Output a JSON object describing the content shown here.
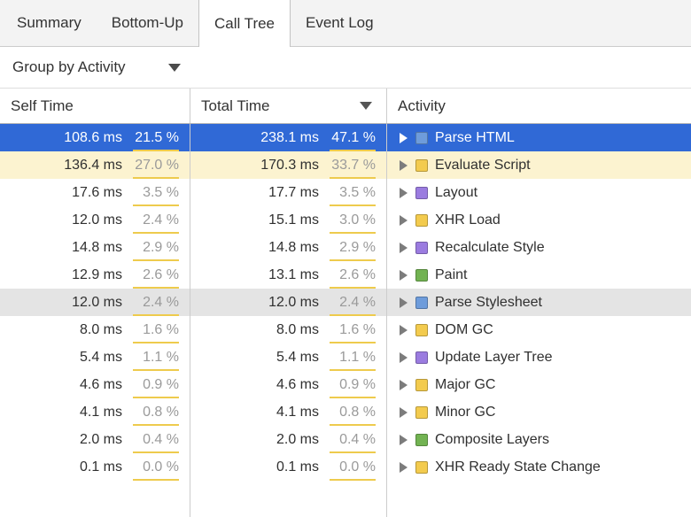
{
  "tabs": {
    "items": [
      {
        "label": "Summary",
        "selected": false
      },
      {
        "label": "Bottom-Up",
        "selected": false
      },
      {
        "label": "Call Tree",
        "selected": true
      },
      {
        "label": "Event Log",
        "selected": false
      }
    ]
  },
  "toolbar": {
    "group_by_label": "Group by Activity",
    "dropdown_icon": "triangle-down"
  },
  "table": {
    "columns": {
      "self_time": "Self Time",
      "total_time": "Total Time",
      "activity": "Activity",
      "sort_icon": "triangle-down",
      "sorted_by": "total_time"
    },
    "rows": [
      {
        "self_time": "108.6 ms",
        "self_pct": "21.5 %",
        "total_time": "238.1 ms",
        "total_pct": "47.1 %",
        "activity": "Parse HTML",
        "category": "loading",
        "state": "selected"
      },
      {
        "self_time": "136.4 ms",
        "self_pct": "27.0 %",
        "total_time": "170.3 ms",
        "total_pct": "33.7 %",
        "activity": "Evaluate Script",
        "category": "scripting",
        "state": "highlighted"
      },
      {
        "self_time": "17.6 ms",
        "self_pct": "3.5 %",
        "total_time": "17.7 ms",
        "total_pct": "3.5 %",
        "activity": "Layout",
        "category": "rendering",
        "state": "normal"
      },
      {
        "self_time": "12.0 ms",
        "self_pct": "2.4 %",
        "total_time": "15.1 ms",
        "total_pct": "3.0 %",
        "activity": "XHR Load",
        "category": "scripting",
        "state": "normal"
      },
      {
        "self_time": "14.8 ms",
        "self_pct": "2.9 %",
        "total_time": "14.8 ms",
        "total_pct": "2.9 %",
        "activity": "Recalculate Style",
        "category": "rendering",
        "state": "normal"
      },
      {
        "self_time": "12.9 ms",
        "self_pct": "2.6 %",
        "total_time": "13.1 ms",
        "total_pct": "2.6 %",
        "activity": "Paint",
        "category": "painting",
        "state": "normal"
      },
      {
        "self_time": "12.0 ms",
        "self_pct": "2.4 %",
        "total_time": "12.0 ms",
        "total_pct": "2.4 %",
        "activity": "Parse Stylesheet",
        "category": "loading",
        "state": "hovered"
      },
      {
        "self_time": "8.0 ms",
        "self_pct": "1.6 %",
        "total_time": "8.0 ms",
        "total_pct": "1.6 %",
        "activity": "DOM GC",
        "category": "scripting",
        "state": "normal"
      },
      {
        "self_time": "5.4 ms",
        "self_pct": "1.1 %",
        "total_time": "5.4 ms",
        "total_pct": "1.1 %",
        "activity": "Update Layer Tree",
        "category": "rendering",
        "state": "normal"
      },
      {
        "self_time": "4.6 ms",
        "self_pct": "0.9 %",
        "total_time": "4.6 ms",
        "total_pct": "0.9 %",
        "activity": "Major GC",
        "category": "scripting",
        "state": "normal"
      },
      {
        "self_time": "4.1 ms",
        "self_pct": "0.8 %",
        "total_time": "4.1 ms",
        "total_pct": "0.8 %",
        "activity": "Minor GC",
        "category": "scripting",
        "state": "normal"
      },
      {
        "self_time": "2.0 ms",
        "self_pct": "0.4 %",
        "total_time": "2.0 ms",
        "total_pct": "0.4 %",
        "activity": "Composite Layers",
        "category": "painting",
        "state": "normal"
      },
      {
        "self_time": "0.1 ms",
        "self_pct": "0.0 %",
        "total_time": "0.1 ms",
        "total_pct": "0.0 %",
        "activity": "XHR Ready State Change",
        "category": "scripting",
        "state": "normal"
      }
    ]
  },
  "colors": {
    "selection_background": "#3069d6",
    "selected_text": "#ffffff",
    "highlight_row_background": "#fcf3d0",
    "hover_row_background": "#e4e4e4",
    "percent_text": "#9a9a9a",
    "percent_bar": "#eecb4d",
    "categories": {
      "loading": "#6e9cdb",
      "scripting": "#f3cb4e",
      "rendering": "#9b7ce0",
      "painting": "#72b352"
    }
  }
}
